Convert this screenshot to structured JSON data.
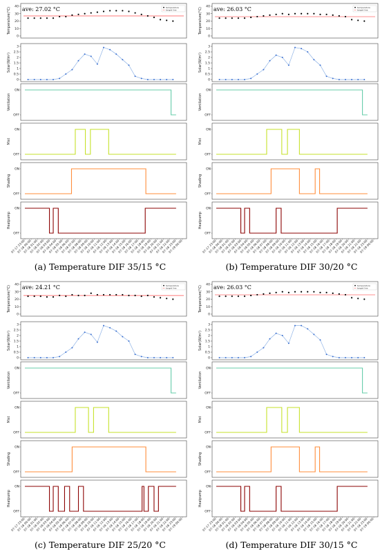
{
  "layout_meta": {
    "note": "data only; geometry lives in script"
  },
  "x_ticks": [
    "07-17 23:00",
    "07-18 00:00",
    "07-18 01:00",
    "07-18 02:00",
    "07-18 03:00",
    "07-18 04:00",
    "07-18 05:00",
    "07-18 06:00",
    "07-18 07:00",
    "07-18 08:00",
    "07-18 09:00",
    "07-18 10:00",
    "07-18 11:00",
    "07-18 12:00",
    "07-18 13:00",
    "07-18 14:00",
    "07-18 15:00",
    "07-18 16:00",
    "07-18 17:00",
    "07-18 18:00",
    "07-18 19:00",
    "07-18 20:00",
    "07-18 21:00",
    "07-18 22:00",
    "07-18 23:00",
    "07-19 00:00"
  ],
  "labels": {
    "temp_ylabel": "Temperature(°C)",
    "solar_ylabel": "Solar(W/m²)",
    "vent_ylabel": "Ventilation",
    "mist_ylabel": "Mist",
    "shade_ylabel": "Shading",
    "hp_ylabel": "Heatpump",
    "on": "ON",
    "off": "OFF",
    "legend_temp": "temperature",
    "legend_target": "target line"
  },
  "colors": {
    "temp_dots": "#000000",
    "target_line": "#ff4d4d",
    "solar_line": "#8fb3e6",
    "solar_dots": "#3a6fd0",
    "ventilation": "#66cdaa",
    "mist": "#c6e22a",
    "shading": "#ff8c3a",
    "heatpump": "#8b0000"
  },
  "chart_data": [
    {
      "type": "line",
      "caption": "(a) Temperature DIF 35/15 °C",
      "ave_text": "ave: 27.02 °C",
      "temperature": {
        "ylim": [
          0,
          40
        ],
        "yticks": [
          0,
          10,
          20,
          30,
          40
        ],
        "target": 27,
        "values": [
          24,
          24,
          24,
          24,
          24,
          26,
          26,
          28,
          29,
          30,
          31,
          32,
          33,
          34,
          34,
          34,
          33,
          31,
          29,
          27,
          25,
          22,
          21,
          20
        ]
      },
      "solar": {
        "ylim": [
          0,
          3
        ],
        "yticks": [
          0,
          0.5,
          1,
          1.5,
          2,
          2.5,
          3
        ],
        "values": [
          0,
          0,
          0,
          0,
          0,
          0.1,
          0.5,
          0.9,
          1.7,
          2.3,
          2.1,
          1.4,
          2.9,
          2.7,
          2.3,
          1.8,
          1.3,
          0.3,
          0.1,
          0,
          0,
          0,
          0,
          0
        ]
      },
      "ventilation": {
        "segments": [
          [
            0,
            1
          ],
          [
            23.2,
            0
          ]
        ]
      },
      "mist": {
        "segments": [
          [
            0,
            0
          ],
          [
            8,
            1
          ],
          [
            9.6,
            0
          ],
          [
            10.4,
            1
          ],
          [
            13.3,
            0
          ]
        ]
      },
      "shading": {
        "segments": [
          [
            0,
            0
          ],
          [
            7.4,
            1
          ],
          [
            19.2,
            0
          ]
        ]
      },
      "heatpump": {
        "segments": [
          [
            0,
            1
          ],
          [
            3.9,
            0
          ],
          [
            4.5,
            1
          ],
          [
            5.3,
            0
          ],
          [
            19.1,
            1
          ]
        ]
      }
    },
    {
      "type": "line",
      "caption": "(b) Temperature DIF 30/20 °C",
      "ave_text": "ave: 26.03 °C",
      "temperature": {
        "ylim": [
          0,
          40
        ],
        "yticks": [
          0,
          10,
          20,
          30,
          40
        ],
        "target": 26,
        "values": [
          24,
          24,
          24,
          24,
          24,
          25,
          26,
          27,
          28,
          29,
          30,
          29,
          30,
          30,
          30,
          30,
          29,
          29,
          28,
          27,
          26,
          22,
          21,
          20
        ]
      },
      "solar": {
        "ylim": [
          0,
          3
        ],
        "yticks": [
          0,
          0.5,
          1,
          1.5,
          2,
          2.5,
          3
        ],
        "values": [
          0,
          0,
          0,
          0,
          0,
          0.1,
          0.5,
          0.9,
          1.7,
          2.2,
          2.0,
          1.3,
          2.9,
          2.8,
          2.5,
          1.8,
          1.3,
          0.3,
          0.1,
          0,
          0,
          0,
          0,
          0
        ]
      },
      "ventilation": {
        "segments": [
          [
            0,
            1
          ],
          [
            23.2,
            0
          ]
        ]
      },
      "mist": {
        "segments": [
          [
            0,
            0
          ],
          [
            8,
            1
          ],
          [
            10.4,
            0
          ],
          [
            11.3,
            1
          ],
          [
            13.2,
            0
          ]
        ]
      },
      "shading": {
        "segments": [
          [
            0,
            0
          ],
          [
            8.7,
            1
          ],
          [
            13.2,
            0
          ],
          [
            15.7,
            1
          ],
          [
            16.4,
            0
          ]
        ]
      },
      "heatpump": {
        "segments": [
          [
            0,
            1
          ],
          [
            3.9,
            0
          ],
          [
            4.5,
            1
          ],
          [
            5.3,
            0
          ],
          [
            9.5,
            1
          ],
          [
            10.3,
            0
          ],
          [
            19.2,
            1
          ]
        ]
      }
    },
    {
      "type": "line",
      "caption": "(c) Temperature DIF 25/20 °C",
      "ave_text": "ave: 24.21 °C",
      "temperature": {
        "ylim": [
          0,
          40
        ],
        "yticks": [
          0,
          10,
          20,
          30,
          40
        ],
        "target": 25,
        "values": [
          24,
          24,
          24,
          23,
          23,
          25,
          24,
          26,
          25,
          25,
          28,
          26,
          26,
          26,
          26,
          26,
          25,
          25,
          24,
          25,
          23,
          22,
          21,
          20
        ]
      },
      "solar": {
        "ylim": [
          0,
          3
        ],
        "yticks": [
          0,
          0.5,
          1,
          1.5,
          2,
          2.5,
          3
        ],
        "values": [
          0,
          0,
          0,
          0,
          0,
          0.1,
          0.5,
          0.9,
          1.7,
          2.3,
          2.1,
          1.4,
          2.9,
          2.7,
          2.4,
          1.9,
          1.5,
          0.3,
          0.1,
          0,
          0,
          0,
          0,
          0
        ]
      },
      "ventilation": {
        "segments": [
          [
            0,
            1
          ],
          [
            23.2,
            0
          ]
        ]
      },
      "mist": {
        "segments": [
          [
            0,
            0
          ],
          [
            8,
            1
          ],
          [
            10.1,
            0
          ],
          [
            10.9,
            1
          ],
          [
            13.3,
            0
          ]
        ]
      },
      "shading": {
        "segments": [
          [
            0,
            0
          ],
          [
            7.5,
            1
          ],
          [
            19.2,
            0
          ]
        ]
      },
      "heatpump": {
        "segments": [
          [
            0,
            1
          ],
          [
            3.9,
            0
          ],
          [
            4.5,
            1
          ],
          [
            5.3,
            0
          ],
          [
            6.3,
            1
          ],
          [
            7.1,
            0
          ],
          [
            8.5,
            1
          ],
          [
            9.3,
            0
          ],
          [
            18.6,
            1
          ],
          [
            18.9,
            0
          ],
          [
            19.6,
            1
          ],
          [
            20.5,
            0
          ],
          [
            21.2,
            1
          ]
        ]
      }
    },
    {
      "type": "line",
      "caption": "(d) Temperature DIF 30/15 °C",
      "ave_text": "ave: 26.03 °C",
      "temperature": {
        "ylim": [
          0,
          40
        ],
        "yticks": [
          0,
          10,
          20,
          30,
          40
        ],
        "target": 26,
        "values": [
          24,
          24,
          24,
          24,
          24,
          25,
          26,
          27,
          28,
          29,
          30,
          29,
          30,
          30,
          30,
          30,
          29,
          29,
          28,
          27,
          26,
          22,
          21,
          20
        ]
      },
      "solar": {
        "ylim": [
          0,
          3
        ],
        "yticks": [
          0,
          0.5,
          1,
          1.5,
          2,
          2.5,
          3
        ],
        "values": [
          0,
          0,
          0,
          0,
          0,
          0.1,
          0.5,
          0.9,
          1.7,
          2.2,
          2.0,
          1.3,
          2.9,
          2.9,
          2.6,
          2.1,
          1.6,
          0.3,
          0.1,
          0,
          0,
          0,
          0,
          0
        ]
      },
      "ventilation": {
        "segments": [
          [
            0,
            1
          ],
          [
            23.2,
            0
          ]
        ]
      },
      "mist": {
        "segments": [
          [
            0,
            0
          ],
          [
            8,
            1
          ],
          [
            10.4,
            0
          ],
          [
            11.3,
            1
          ],
          [
            13.2,
            0
          ]
        ]
      },
      "shading": {
        "segments": [
          [
            0,
            0
          ],
          [
            8.7,
            1
          ],
          [
            13.2,
            0
          ],
          [
            15.7,
            1
          ],
          [
            16.4,
            0
          ]
        ]
      },
      "heatpump": {
        "segments": [
          [
            0,
            1
          ],
          [
            3.9,
            0
          ],
          [
            4.5,
            1
          ],
          [
            5.3,
            0
          ],
          [
            9.5,
            1
          ],
          [
            10.3,
            0
          ],
          [
            19.2,
            1
          ]
        ]
      }
    }
  ]
}
